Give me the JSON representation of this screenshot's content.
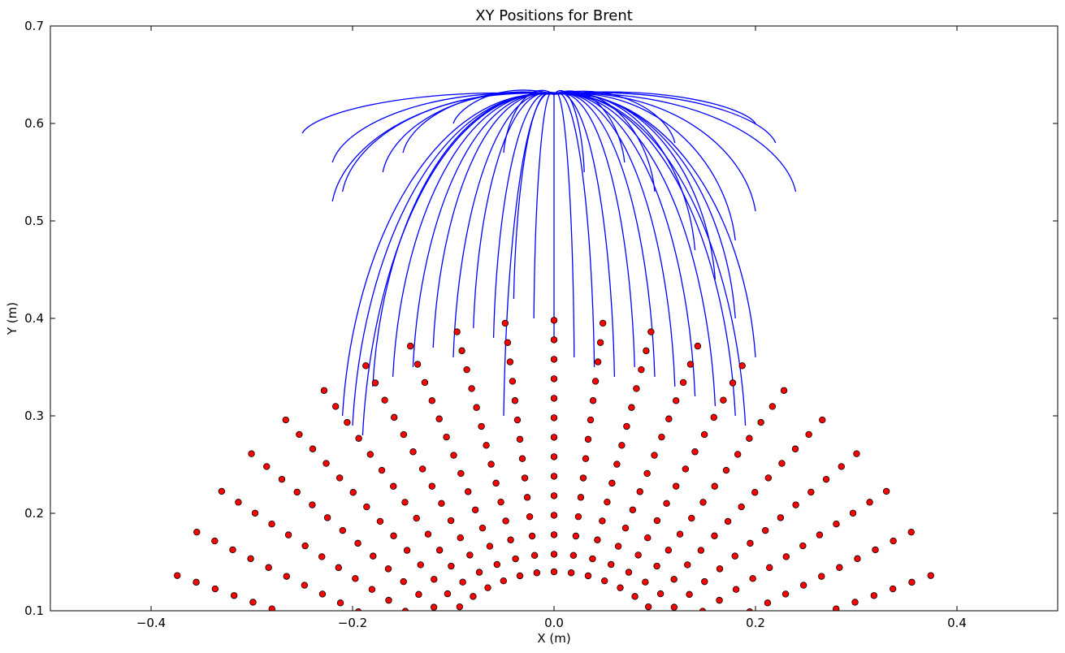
{
  "chart_data": {
    "type": "scatter",
    "title": "XY Positions for Brent",
    "xlabel": "X (m)",
    "ylabel": "Y (m)",
    "xlim": [
      -0.5,
      0.5
    ],
    "ylim": [
      0.1,
      0.7
    ],
    "xticks": [
      -0.4,
      -0.2,
      0.0,
      0.2,
      0.4
    ],
    "xtick_labels": [
      "−0.4",
      "−0.2",
      "0.0",
      "0.2",
      "0.4"
    ],
    "yticks": [
      0.1,
      0.2,
      0.3,
      0.4,
      0.5,
      0.6,
      0.7
    ],
    "ytick_labels": [
      "0.1",
      "0.2",
      "0.3",
      "0.4",
      "0.5",
      "0.6",
      "0.7"
    ],
    "grid": false,
    "legend": "none",
    "colors": {
      "points": "#ff0000",
      "point_edge": "#000000",
      "trajectories": "#0000ff",
      "markers": "#000080"
    },
    "series": [
      {
        "kind": "points",
        "grid_spec": {
          "radii": [
            0.14,
            0.158,
            0.178,
            0.198,
            0.218,
            0.238,
            0.258,
            0.278,
            0.298,
            0.318,
            0.338,
            0.358,
            0.378,
            0.398
          ],
          "center": [
            0.0,
            0.0
          ],
          "angle_range_deg": [
            20,
            160
          ],
          "points_per_arc": 21
        }
      },
      {
        "kind": "trajectories",
        "start": [
          0.0,
          0.63
        ],
        "endpoints": [
          [
            -0.25,
            0.59
          ],
          [
            -0.22,
            0.56
          ],
          [
            -0.21,
            0.53
          ],
          [
            -0.22,
            0.52
          ],
          [
            -0.21,
            0.3
          ],
          [
            -0.2,
            0.29
          ],
          [
            -0.19,
            0.28
          ],
          [
            -0.18,
            0.33
          ],
          [
            -0.16,
            0.34
          ],
          [
            -0.14,
            0.35
          ],
          [
            -0.12,
            0.37
          ],
          [
            -0.1,
            0.36
          ],
          [
            -0.08,
            0.39
          ],
          [
            -0.06,
            0.38
          ],
          [
            -0.05,
            0.3
          ],
          [
            -0.04,
            0.42
          ],
          [
            -0.02,
            0.4
          ],
          [
            0.0,
            0.38
          ],
          [
            0.02,
            0.36
          ],
          [
            0.04,
            0.35
          ],
          [
            0.06,
            0.34
          ],
          [
            0.08,
            0.35
          ],
          [
            0.1,
            0.34
          ],
          [
            0.12,
            0.33
          ],
          [
            0.14,
            0.32
          ],
          [
            0.16,
            0.31
          ],
          [
            0.18,
            0.3
          ],
          [
            0.19,
            0.29
          ],
          [
            0.2,
            0.36
          ],
          [
            0.18,
            0.4
          ],
          [
            0.16,
            0.44
          ],
          [
            0.14,
            0.47
          ],
          [
            0.18,
            0.48
          ],
          [
            0.2,
            0.51
          ],
          [
            0.24,
            0.53
          ],
          [
            0.22,
            0.58
          ],
          [
            0.2,
            0.6
          ],
          [
            0.12,
            0.58
          ],
          [
            0.07,
            0.56
          ],
          [
            -0.05,
            0.57
          ],
          [
            -0.15,
            0.57
          ],
          [
            -0.1,
            0.6
          ],
          [
            -0.17,
            0.55
          ],
          [
            0.1,
            0.53
          ],
          [
            0.03,
            0.55
          ]
        ]
      }
    ]
  }
}
